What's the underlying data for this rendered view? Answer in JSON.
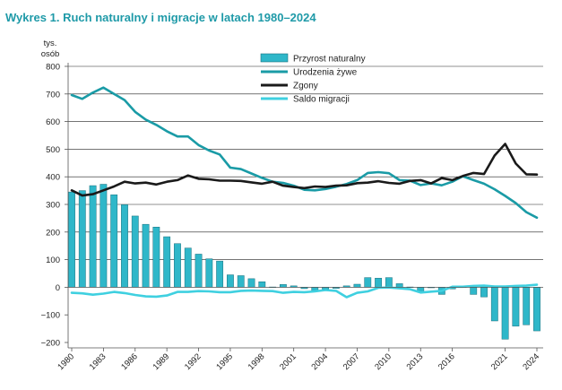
{
  "chart_data": {
    "type": "bar",
    "title": "Wykres 1. Ruch naturalny i migracje w latach 1980–2024",
    "ylabel_line1": "tys.",
    "ylabel_line2": "osób",
    "ylim": [
      -200,
      800
    ],
    "yticks": [
      800,
      700,
      600,
      500,
      400,
      300,
      200,
      100,
      0,
      -100,
      -200
    ],
    "xtick_labels": [
      "1980",
      "1983",
      "1986",
      "1989",
      "1992",
      "1995",
      "1998",
      "2001",
      "2004",
      "2007",
      "2010",
      "2013",
      "2016",
      "2021",
      "2024"
    ],
    "x": [
      1980,
      1981,
      1982,
      1983,
      1984,
      1985,
      1986,
      1987,
      1988,
      1989,
      1990,
      1991,
      1992,
      1993,
      1994,
      1995,
      1996,
      1997,
      1998,
      1999,
      2000,
      2001,
      2002,
      2003,
      2004,
      2005,
      2006,
      2007,
      2008,
      2009,
      2010,
      2011,
      2012,
      2013,
      2014,
      2015,
      2016,
      2017,
      2018,
      2019,
      2020,
      2021,
      2022,
      2023,
      2024
    ],
    "colors": {
      "bars": "#2fb7c9",
      "bar_edge": "#1b6f7c",
      "births": "#1a9ba6",
      "deaths": "#1a1a1a",
      "migration": "#3fd0e0",
      "axis": "#555555",
      "grid": "#222222",
      "title": "#1f9aa8"
    },
    "series": [
      {
        "name": "Przyrost naturalny",
        "kind": "bar",
        "values": [
          345,
          350,
          368,
          373,
          335,
          299,
          258,
          228,
          218,
          183,
          158,
          142,
          120,
          103,
          95,
          45,
          42,
          31,
          20,
          1,
          10,
          5,
          -5,
          -14,
          -7,
          -4,
          5,
          11,
          35,
          33,
          35,
          13,
          1,
          -18,
          -1,
          -26,
          -6,
          1,
          -26,
          -35,
          -122,
          -188,
          -141,
          -136,
          -158
        ]
      },
      {
        "name": "Urodzenia żywe",
        "kind": "line",
        "values": [
          696,
          682,
          705,
          723,
          700,
          678,
          635,
          607,
          588,
          565,
          546,
          546,
          515,
          495,
          481,
          433,
          428,
          412,
          396,
          382,
          378,
          368,
          353,
          351,
          356,
          364,
          374,
          388,
          414,
          417,
          413,
          388,
          386,
          370,
          376,
          369,
          382,
          402,
          388,
          375,
          355,
          331,
          305,
          272,
          252
        ]
      },
      {
        "name": "Zgony",
        "kind": "line",
        "values": [
          351,
          332,
          337,
          351,
          365,
          382,
          376,
          379,
          372,
          382,
          388,
          405,
          393,
          391,
          386,
          386,
          385,
          380,
          375,
          382,
          368,
          363,
          359,
          365,
          363,
          368,
          369,
          377,
          379,
          384,
          378,
          375,
          385,
          388,
          376,
          395,
          388,
          403,
          414,
          410,
          477,
          519,
          448,
          409,
          408
        ]
      },
      {
        "name": "Saldo migracji",
        "kind": "line",
        "values": [
          -20,
          -22,
          -27,
          -23,
          -17,
          -21,
          -28,
          -33,
          -34,
          -30,
          -17,
          -17,
          -14,
          -15,
          -18,
          -18,
          -13,
          -12,
          -13,
          -14,
          -20,
          -17,
          -18,
          -15,
          -10,
          -13,
          -36,
          -20,
          -15,
          -2,
          -1,
          -4,
          -7,
          -19,
          -16,
          -13,
          2,
          2,
          5,
          6,
          3,
          3,
          5,
          6,
          9
        ]
      }
    ]
  }
}
